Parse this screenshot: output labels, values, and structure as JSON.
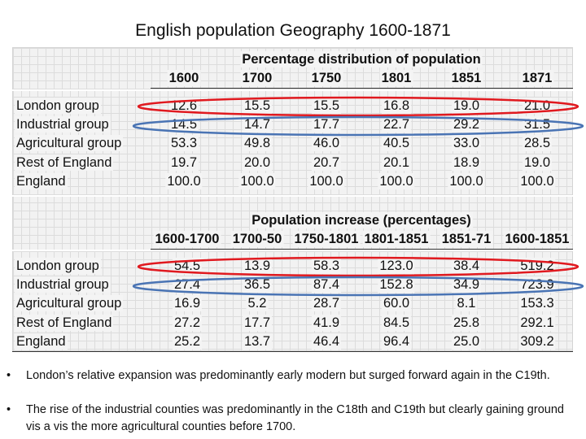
{
  "title": "English population Geography 1600-1871",
  "table1": {
    "heading": "Percentage distribution of population",
    "columns": [
      "1600",
      "1700",
      "1750",
      "1801",
      "1851",
      "1871"
    ],
    "rows": [
      {
        "label": "London group",
        "values": [
          "12.6",
          "15.5",
          "15.5",
          "16.8",
          "19.0",
          "21.0"
        ]
      },
      {
        "label": "Industrial group",
        "values": [
          "14.5",
          "14.7",
          "17.7",
          "22.7",
          "29.2",
          "31.5"
        ]
      },
      {
        "label": "Agricultural group",
        "values": [
          "53.3",
          "49.8",
          "46.0",
          "40.5",
          "33.0",
          "28.5"
        ]
      },
      {
        "label": "Rest of England",
        "values": [
          "19.7",
          "20.0",
          "20.7",
          "20.1",
          "18.9",
          "19.0"
        ]
      },
      {
        "label": "England",
        "values": [
          "100.0",
          "100.0",
          "100.0",
          "100.0",
          "100.0",
          "100.0"
        ]
      }
    ]
  },
  "table2": {
    "heading": "Population increase (percentages)",
    "columns": [
      "1600-1700",
      "1700-50",
      "1750-1801",
      "1801-1851",
      "1851-71",
      "1600-1851"
    ],
    "rows": [
      {
        "label": "London group",
        "values": [
          "54.5",
          "13.9",
          "58.3",
          "123.0",
          "38.4",
          "519.2"
        ]
      },
      {
        "label": "Industrial group",
        "values": [
          "27.4",
          "36.5",
          "87.4",
          "152.8",
          "34.9",
          "723.9"
        ]
      },
      {
        "label": "Agricultural group",
        "values": [
          "16.9",
          "5.2",
          "28.7",
          "60.0",
          "8.1",
          "153.3"
        ]
      },
      {
        "label": "Rest of England",
        "values": [
          "27.2",
          "17.7",
          "41.9",
          "84.5",
          "25.8",
          "292.1"
        ]
      },
      {
        "label": "England",
        "values": [
          "25.2",
          "13.7",
          "46.4",
          "96.4",
          "25.0",
          "309.2"
        ]
      }
    ]
  },
  "highlight_colors": {
    "london": "#e0191f",
    "industrial": "#4a74b4"
  },
  "bullets": [
    "London’s relative expansion was predominantly early modern but surged forward again in the C19th.",
    "The rise of the industrial counties was predominantly in the C18th and C19th but clearly gaining ground vis a vis the more agricultural counties before 1700."
  ],
  "bullet_symbol": "•"
}
